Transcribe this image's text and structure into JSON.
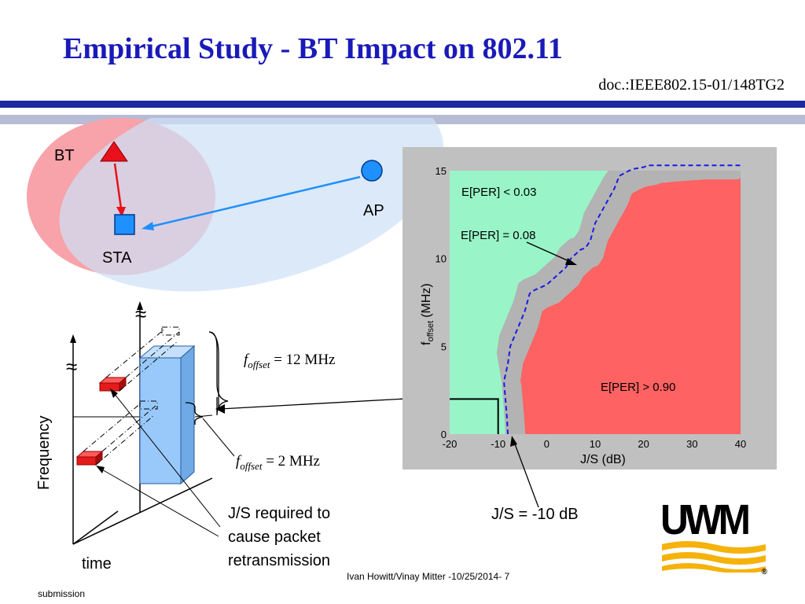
{
  "slide": {
    "title": "Empirical Study - BT Impact on 802.11",
    "doc_id": "doc.:IEEE802.15-01/148TG2",
    "footer_center": "Ivan Howitt/Vinay Mitter -10/25/2014- 7",
    "footer_left": "submission"
  },
  "topology": {
    "bt_label": "BT",
    "sta_label": "STA",
    "ap_label": "AP"
  },
  "freq_diagram": {
    "y_axis_label": "Frequency",
    "x_axis_label": "time",
    "foffset_12_value": "= 12 MHz",
    "foffset_2_value": "= 2 MHz",
    "f_symbol": "f",
    "f_subscript": "offset",
    "note_line1": "J/S required to",
    "note_line2": "cause packet",
    "note_line3": "retransmission",
    "break_symbol": "≈"
  },
  "chart_data": {
    "type": "area",
    "xlabel": "J/S (dB)",
    "ylabel": "f",
    "ylabel_sub": "offset",
    "ylabel_unit": "(MHz)",
    "xlim": [
      -20,
      40
    ],
    "ylim": [
      0,
      15
    ],
    "x_ticks": [
      -20,
      -10,
      0,
      10,
      20,
      30,
      40
    ],
    "y_ticks": [
      0,
      5,
      10,
      15
    ],
    "regions": [
      {
        "name": "E[PER] < 0.03",
        "color": "#99f5c8"
      },
      {
        "name": "E[PER] > 0.90",
        "color": "#ff6262"
      }
    ],
    "curve_label": "E[PER] = 0.08",
    "curve": {
      "x": [
        -8,
        -8.2,
        -8.5,
        -8.8,
        -8,
        -7.5,
        -6,
        -4.5,
        -3.5,
        -2.5,
        0,
        4,
        5,
        7,
        8,
        9,
        10,
        12,
        14,
        15,
        17,
        18,
        20,
        21,
        25,
        30,
        35,
        37,
        40
      ],
      "y": [
        0,
        1,
        2,
        3,
        4,
        5,
        6,
        7,
        8,
        8.2,
        8.5,
        9.5,
        10,
        10.5,
        10.6,
        11,
        12,
        13,
        14,
        14.7,
        15,
        15.1,
        15.2,
        15.3,
        15.4,
        15.5,
        15.5,
        15.5,
        15.6
      ]
    },
    "marker": {
      "x": -10,
      "y": 2,
      "label": "J/S = -10 dB"
    }
  },
  "logo": {
    "text": "UWM",
    "reg": "®",
    "colors": {
      "text": "#000000",
      "band": "#f5b20a"
    }
  }
}
